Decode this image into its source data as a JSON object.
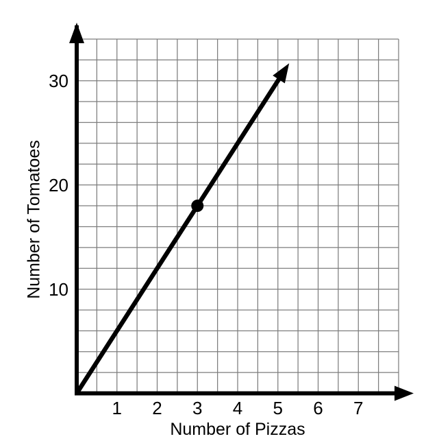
{
  "figure": {
    "background": "#ffffff",
    "description": "Line graph of tomatoes needed per number of pizzas"
  },
  "chart_data": {
    "type": "line",
    "title": "",
    "xlabel": "Number of Pizzas",
    "ylabel": "Number of Tomatoes",
    "xlim": [
      0,
      8
    ],
    "ylim": [
      0,
      34
    ],
    "x_tick_values": [
      1,
      2,
      3,
      4,
      5,
      6,
      7
    ],
    "x_tick_labels": [
      "1",
      "2",
      "3",
      "4",
      "5",
      "6",
      "7"
    ],
    "y_tick_values": [
      10,
      20,
      30
    ],
    "y_tick_labels": [
      "10",
      "20",
      "30"
    ],
    "x_minor_step": 0.5,
    "y_minor_step": 2,
    "grid": true,
    "legend": false,
    "series": [
      {
        "name": "tomatoes-vs-pizzas-line",
        "slope": 6,
        "intercept": 0,
        "draw_from": [
          0,
          0
        ],
        "draw_to": [
          5.28,
          31.68
        ],
        "arrow_at_end": true
      }
    ],
    "marked_points": [
      {
        "x": 3,
        "y": 18
      }
    ],
    "axes": {
      "x_arrow": true,
      "y_arrow": true
    },
    "colors": {
      "axis": "#000000",
      "line": "#000000",
      "point": "#000000",
      "grid": "#7d7d7d",
      "text": "#000000",
      "background": "#ffffff"
    }
  }
}
